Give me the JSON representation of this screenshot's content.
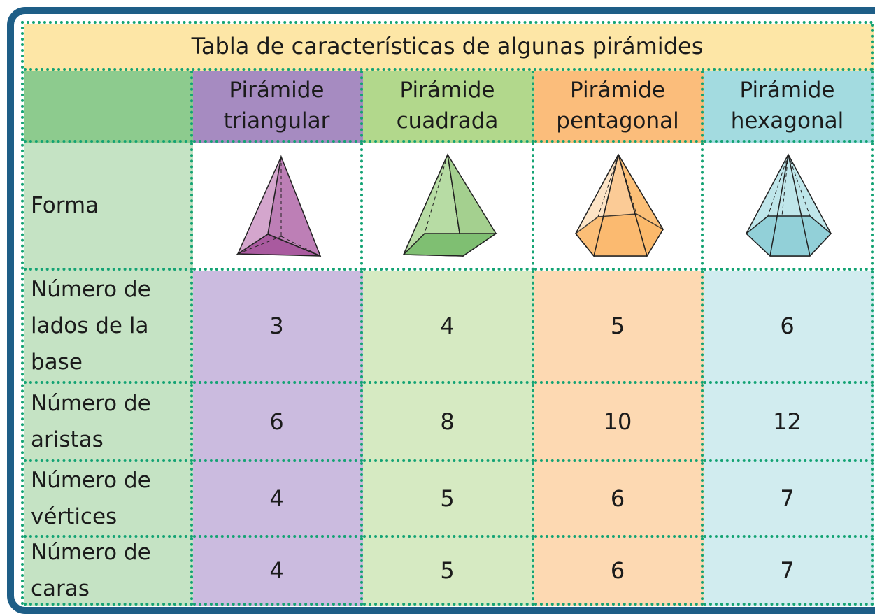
{
  "table": {
    "title": "Tabla de características de algunas pirámides",
    "columns": [
      "Pirámide triangular",
      "Pirámide cuadrada",
      "Pirámide pentagonal",
      "Pirámide hexagonal"
    ],
    "rows": [
      {
        "label": "Forma"
      },
      {
        "label": "Número de lados de la base",
        "values": [
          3,
          4,
          5,
          6
        ]
      },
      {
        "label": "Número de aristas",
        "values": [
          6,
          8,
          10,
          12
        ]
      },
      {
        "label": "Número de vértices",
        "values": [
          4,
          5,
          6,
          7
        ]
      },
      {
        "label": "Número de caras",
        "values": [
          4,
          5,
          6,
          7
        ]
      }
    ]
  }
}
